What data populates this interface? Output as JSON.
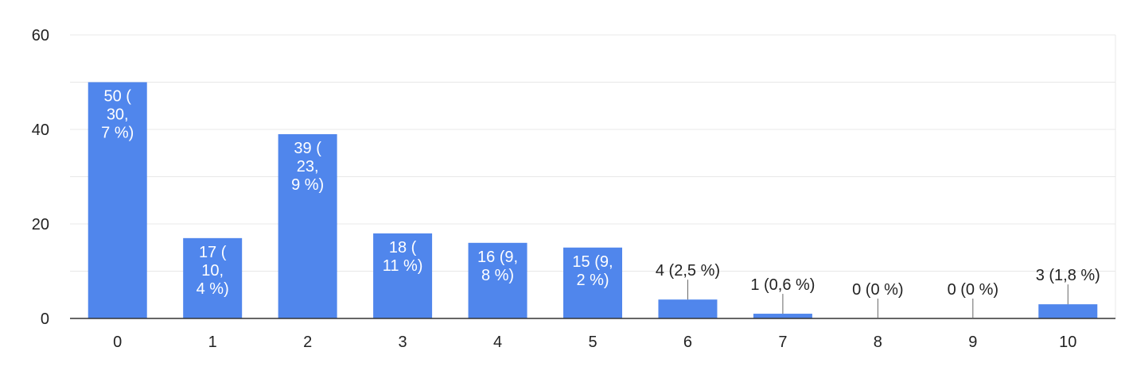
{
  "chart_data": {
    "type": "bar",
    "categories": [
      "0",
      "1",
      "2",
      "3",
      "4",
      "5",
      "6",
      "7",
      "8",
      "9",
      "10"
    ],
    "values": [
      50,
      17,
      39,
      18,
      16,
      15,
      4,
      1,
      0,
      0,
      3
    ],
    "data_labels": [
      [
        "50 (",
        "30,",
        "7 %)"
      ],
      [
        "17 (",
        "10,",
        "4 %)"
      ],
      [
        "39 (",
        "23,",
        "9 %)"
      ],
      [
        "18 (",
        "11 %)"
      ],
      [
        "16 (9,",
        "8 %)"
      ],
      [
        "15 (9,",
        "2 %)"
      ],
      [
        "4 (2,5 %)"
      ],
      [
        "1 (0,6 %)"
      ],
      [
        "0 (0 %)"
      ],
      [
        "0 (0 %)"
      ],
      [
        "3 (1,8 %)"
      ]
    ],
    "y_ticks": [
      0,
      20,
      40,
      60
    ],
    "ylim": [
      0,
      60
    ],
    "grid": true,
    "legend": "none",
    "colors": {
      "bar": "#5086ec",
      "grid": "#e8e8e8",
      "axis": "#333333",
      "text": "#222222",
      "inside_text": "#ffffff"
    }
  }
}
